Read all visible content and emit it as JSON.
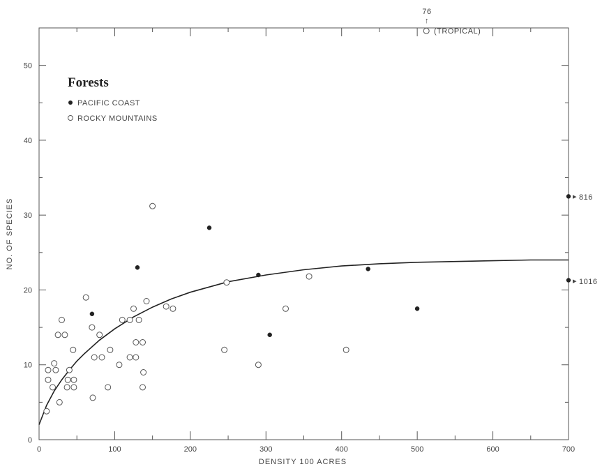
{
  "chart_data": {
    "type": "scatter",
    "xlabel": "DENSITY   100 ACRES",
    "ylabel": "NO. OF SPECIES",
    "xlim": [
      0,
      700
    ],
    "ylim": [
      0,
      55
    ],
    "xticks": [
      0,
      100,
      200,
      300,
      400,
      500,
      600,
      700
    ],
    "yticks": [
      0,
      10,
      20,
      30,
      40,
      50
    ],
    "grid": false,
    "legend_title": "Forests",
    "legend_position": "top-left",
    "series": [
      {
        "name": "PACIFIC COAST",
        "marker": "filled",
        "color": "#222222",
        "points": [
          [
            70,
            16.8
          ],
          [
            130,
            23
          ],
          [
            225,
            28.3
          ],
          [
            290,
            22
          ],
          [
            305,
            14
          ],
          [
            435,
            22.8
          ],
          [
            500,
            17.5
          ],
          [
            700,
            32.5
          ],
          [
            700,
            21.3
          ]
        ]
      },
      {
        "name": "ROCKY MOUNTAINS",
        "marker": "open",
        "color": "#555555",
        "points": [
          [
            10,
            3.8
          ],
          [
            12,
            8
          ],
          [
            12,
            9.3
          ],
          [
            18,
            7
          ],
          [
            20,
            10.2
          ],
          [
            22,
            9.3
          ],
          [
            25,
            14
          ],
          [
            27,
            5
          ],
          [
            30,
            16
          ],
          [
            34,
            14
          ],
          [
            37,
            7
          ],
          [
            38,
            8
          ],
          [
            40,
            9.3
          ],
          [
            45,
            12
          ],
          [
            46,
            8
          ],
          [
            46,
            7
          ],
          [
            62,
            19
          ],
          [
            70,
            15
          ],
          [
            71,
            5.6
          ],
          [
            73,
            11
          ],
          [
            80,
            14
          ],
          [
            83,
            11
          ],
          [
            91,
            7
          ],
          [
            94,
            12
          ],
          [
            106,
            10
          ],
          [
            110,
            16
          ],
          [
            120,
            11
          ],
          [
            120,
            16
          ],
          [
            125,
            17.5
          ],
          [
            128,
            13
          ],
          [
            128,
            11
          ],
          [
            132,
            16
          ],
          [
            137,
            7
          ],
          [
            137,
            13
          ],
          [
            138,
            9
          ],
          [
            142,
            18.5
          ],
          [
            150,
            31.2
          ],
          [
            168,
            17.8
          ],
          [
            177,
            17.5
          ],
          [
            245,
            12
          ],
          [
            248,
            21
          ],
          [
            290,
            10
          ],
          [
            326,
            17.5
          ],
          [
            357,
            21.8
          ],
          [
            406,
            12
          ],
          [
            512,
            54.6
          ]
        ]
      }
    ],
    "curve": {
      "label": "fitted curve",
      "points": [
        [
          0,
          2
        ],
        [
          10,
          4.6
        ],
        [
          20,
          6.5
        ],
        [
          30,
          8
        ],
        [
          40,
          9.3
        ],
        [
          50,
          10.5
        ],
        [
          60,
          11.5
        ],
        [
          80,
          13.3
        ],
        [
          100,
          14.8
        ],
        [
          125,
          16.4
        ],
        [
          150,
          17.7
        ],
        [
          175,
          18.8
        ],
        [
          200,
          19.7
        ],
        [
          250,
          21.1
        ],
        [
          300,
          22.0
        ],
        [
          350,
          22.7
        ],
        [
          400,
          23.2
        ],
        [
          450,
          23.5
        ],
        [
          500,
          23.7
        ],
        [
          550,
          23.8
        ],
        [
          600,
          23.9
        ],
        [
          650,
          24.0
        ],
        [
          700,
          24.0
        ]
      ]
    },
    "annotations": {
      "off_scale_value_1": "816",
      "off_scale_value_2": "1016",
      "tropical_value": "76",
      "tropical_arrow": "↑",
      "tropical_label": "(TROPICAL)",
      "right_arrow": "▸"
    }
  }
}
